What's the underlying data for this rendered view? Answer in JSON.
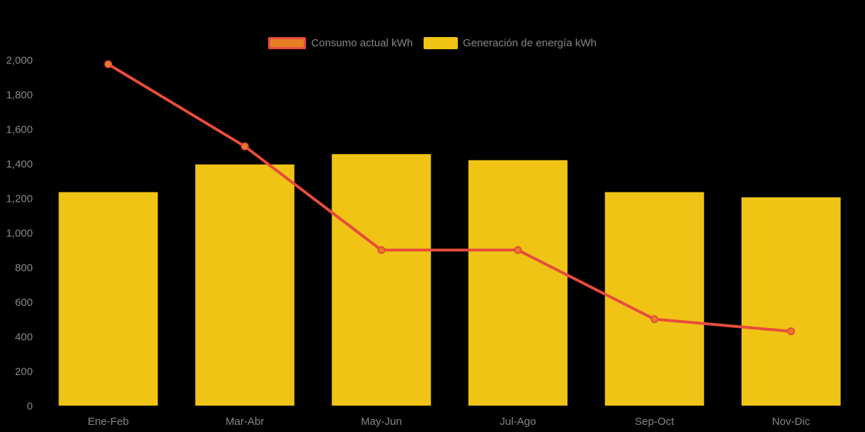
{
  "legend": {
    "items": [
      {
        "label": "Consumo actual kWh",
        "fill": "#E67E22",
        "border": "#E74C3C"
      },
      {
        "label": "Generación de energía kWh",
        "fill": "#F0C414",
        "border": "#F0C414"
      }
    ]
  },
  "chart_data": {
    "type": "bar",
    "subtype": "bar-line-combo",
    "title": "",
    "xlabel": "",
    "ylabel": "",
    "categories": [
      "Ene-Feb",
      "Mar-Abr",
      "May-Jun",
      "Jul-Ago",
      "Sep-Oct",
      "Nov-Dic"
    ],
    "series": [
      {
        "name": "Generación de energía kWh",
        "type": "bar",
        "color": "#F0C414",
        "values": [
          1235,
          1395,
          1455,
          1420,
          1235,
          1205
        ]
      },
      {
        "name": "Consumo actual kWh",
        "type": "line",
        "color": "#E74C3C",
        "marker_fill": "#E67E22",
        "marker_stroke": "#E74C3C",
        "values": [
          1975,
          1500,
          900,
          900,
          500,
          430
        ]
      }
    ],
    "ylim": [
      0,
      2000
    ],
    "y_ticks": [
      {
        "value": 0,
        "label": "0"
      },
      {
        "value": 200,
        "label": "200"
      },
      {
        "value": 400,
        "label": "400"
      },
      {
        "value": 600,
        "label": "600"
      },
      {
        "value": 800,
        "label": "800"
      },
      {
        "value": 1000,
        "label": "1,000"
      },
      {
        "value": 1200,
        "label": "1,200"
      },
      {
        "value": 1400,
        "label": "1,400"
      },
      {
        "value": 1600,
        "label": "1,600"
      },
      {
        "value": 1800,
        "label": "1,800"
      },
      {
        "value": 2000,
        "label": "2,000"
      }
    ],
    "grid": "off",
    "legend_position": "top-center",
    "background_color": "#000000",
    "axis_text_color": "#868686"
  }
}
